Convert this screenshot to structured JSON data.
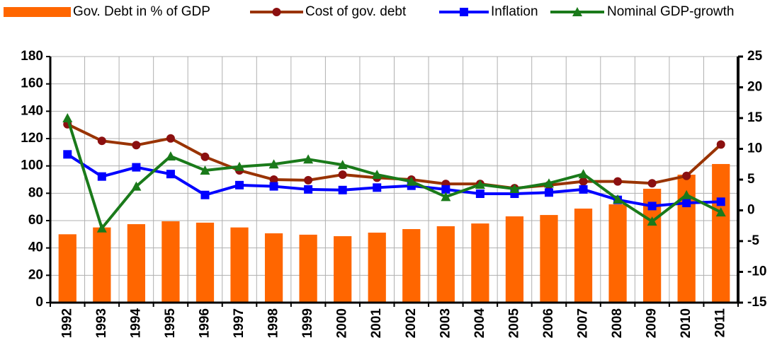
{
  "chart_data": {
    "type": "combo",
    "categories": [
      "1992",
      "1993",
      "1994",
      "1995",
      "1996",
      "1997",
      "1998",
      "1999",
      "2000",
      "2001",
      "2002",
      "2003",
      "2004",
      "2005",
      "2006",
      "2007",
      "2008",
      "2009",
      "2010",
      "2011"
    ],
    "series": [
      {
        "name": "Gov. Debt in % of GDP",
        "type": "bar",
        "color": "#ff6600",
        "values": [
          50,
          55,
          57.4,
          59.5,
          58.5,
          55,
          50.7,
          49.7,
          48.6,
          51.2,
          53.8,
          55.9,
          57.9,
          63.1,
          64.1,
          68.8,
          71.9,
          83.3,
          93.6,
          101.4
        ]
      },
      {
        "name": "Cost of gov. debt",
        "type": "line",
        "marker": "circle",
        "color": "#993300",
        "marker_color": "#8b1010",
        "axis": "y2",
        "values": [
          14.0,
          11.3,
          10.6,
          11.7,
          8.7,
          6.5,
          5.0,
          4.9,
          5.8,
          5.3,
          5.0,
          4.3,
          4.3,
          3.6,
          4.1,
          4.7,
          4.7,
          4.4,
          5.6,
          10.7
        ]
      },
      {
        "name": "Inflation",
        "type": "line",
        "marker": "square",
        "color": "#0000ff",
        "marker_color": "#0000ff",
        "axis": "y2",
        "values": [
          9.1,
          5.5,
          7.0,
          5.9,
          2.5,
          4.1,
          3.9,
          3.4,
          3.3,
          3.7,
          4.0,
          3.4,
          2.7,
          2.7,
          2.9,
          3.4,
          1.7,
          0.7,
          1.2,
          1.4
        ]
      },
      {
        "name": "Nominal GDP-growth",
        "type": "line",
        "marker": "triangle",
        "color": "#1a7a1a",
        "marker_color": "#1a7a1a",
        "axis": "y2",
        "values": [
          15.0,
          -2.9,
          3.9,
          8.8,
          6.5,
          7.1,
          7.5,
          8.3,
          7.4,
          5.8,
          4.7,
          2.2,
          4.2,
          3.5,
          4.4,
          5.9,
          1.8,
          -1.8,
          2.5,
          -0.3
        ]
      }
    ],
    "ylim": [
      0,
      180
    ],
    "yticks": [
      0,
      20,
      40,
      60,
      80,
      100,
      120,
      140,
      160,
      180
    ],
    "y2lim": [
      -15,
      25
    ],
    "y2ticks": [
      -15,
      -10,
      -5,
      0,
      5,
      10,
      15,
      20,
      25
    ],
    "grid": true,
    "legend": "top"
  }
}
